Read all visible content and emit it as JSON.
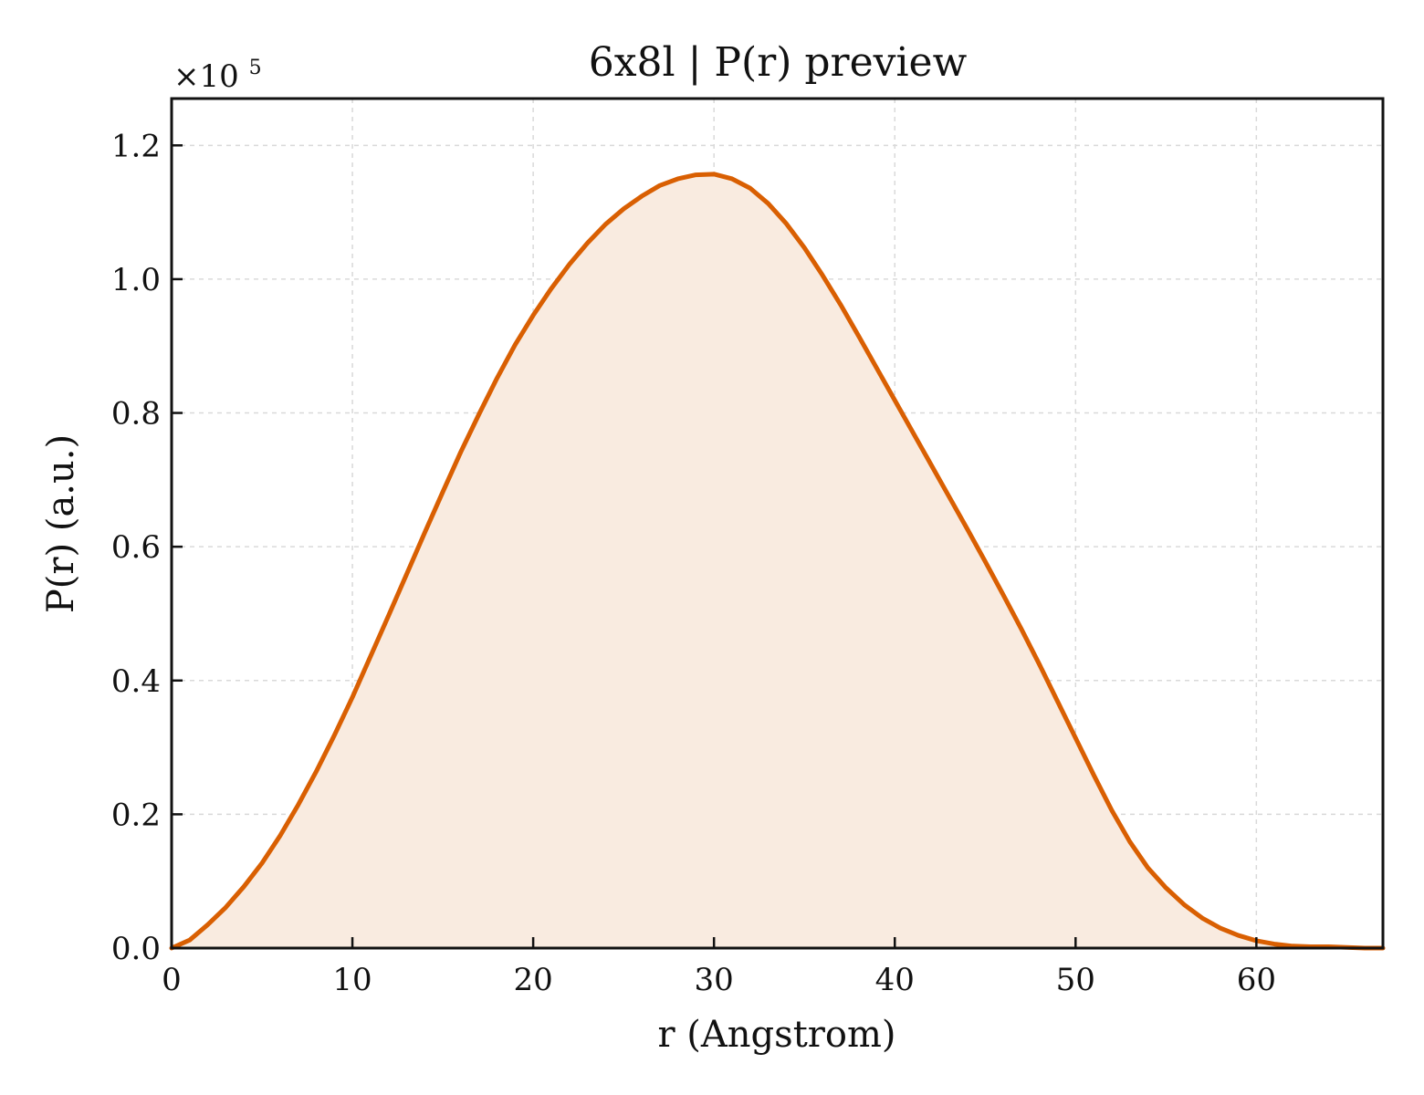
{
  "chart_data": {
    "type": "area",
    "title": "6x8l | P(r) preview",
    "xlabel": "r (Angstrom)",
    "ylabel": "P(r) (a.u.)",
    "y_multiplier": {
      "base": "×10",
      "exponent": "5"
    },
    "xlim": [
      0,
      67
    ],
    "ylim": [
      0,
      1.27
    ],
    "xticks": [
      0,
      10,
      20,
      30,
      40,
      50,
      60
    ],
    "yticks": [
      0.0,
      0.2,
      0.4,
      0.6,
      0.8,
      1.0,
      1.2
    ],
    "xtick_labels": [
      "0",
      "10",
      "20",
      "30",
      "40",
      "50",
      "60"
    ],
    "ytick_labels": [
      "0.0",
      "0.2",
      "0.4",
      "0.6",
      "0.8",
      "1.0",
      "1.2"
    ],
    "grid": true,
    "line_color": "#d95f02",
    "fill_color": "#f9ebe0",
    "series": [
      {
        "x": [
          0,
          1,
          2,
          3,
          4,
          5,
          6,
          7,
          8,
          9,
          10,
          11,
          12,
          13,
          14,
          15,
          16,
          17,
          18,
          19,
          20,
          21,
          22,
          23,
          24,
          25,
          26,
          27,
          28,
          29,
          30,
          31,
          32,
          33,
          34,
          35,
          36,
          37,
          38,
          39,
          40,
          41,
          42,
          43,
          44,
          45,
          46,
          47,
          48,
          49,
          50,
          51,
          52,
          53,
          54,
          55,
          56,
          57,
          58,
          59,
          60,
          61,
          62,
          63,
          64,
          65,
          66,
          67
        ],
        "y": [
          0.0,
          0.012,
          0.035,
          0.061,
          0.092,
          0.127,
          0.168,
          0.214,
          0.264,
          0.318,
          0.375,
          0.436,
          0.497,
          0.559,
          0.621,
          0.682,
          0.742,
          0.798,
          0.852,
          0.902,
          0.946,
          0.986,
          1.022,
          1.054,
          1.082,
          1.105,
          1.124,
          1.14,
          1.15,
          1.156,
          1.157,
          1.15,
          1.136,
          1.113,
          1.083,
          1.047,
          1.006,
          0.962,
          0.915,
          0.867,
          0.819,
          0.771,
          0.723,
          0.675,
          0.627,
          0.578,
          0.528,
          0.477,
          0.424,
          0.369,
          0.314,
          0.259,
          0.206,
          0.159,
          0.12,
          0.09,
          0.065,
          0.045,
          0.03,
          0.019,
          0.011,
          0.006,
          0.003,
          0.002,
          0.002,
          0.001,
          0.0,
          0.0
        ]
      }
    ]
  }
}
